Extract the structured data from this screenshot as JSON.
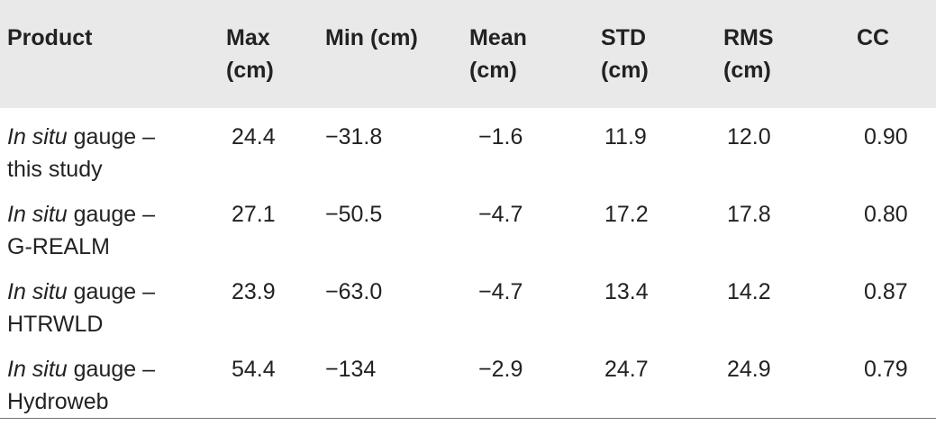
{
  "table": {
    "headers": [
      [
        "Product",
        ""
      ],
      [
        "Max",
        "(cm)"
      ],
      [
        "Min (cm)",
        ""
      ],
      [
        "Mean",
        "(cm)"
      ],
      [
        "STD",
        "(cm)"
      ],
      [
        "RMS",
        "(cm)"
      ],
      [
        "CC",
        ""
      ]
    ],
    "rows": [
      {
        "product_italic": "In situ",
        "product_rest": " gauge –",
        "product_line2": "this study",
        "max": "24.4",
        "min": "−31.8",
        "mean": "−1.6",
        "std": "11.9",
        "rms": "12.0",
        "cc": "0.90"
      },
      {
        "product_italic": "In situ",
        "product_rest": " gauge –",
        "product_line2": "G-REALM",
        "max": "27.1",
        "min": "−50.5",
        "mean": "−4.7",
        "std": "17.2",
        "rms": "17.8",
        "cc": "0.80"
      },
      {
        "product_italic": "In situ",
        "product_rest": " gauge –",
        "product_line2": "HTRWLD",
        "max": "23.9",
        "min": "−63.0",
        "mean": "−4.7",
        "std": "13.4",
        "rms": "14.2",
        "cc": "0.87"
      },
      {
        "product_italic": "In situ",
        "product_rest": " gauge –",
        "product_line2": "Hydroweb",
        "max": "54.4",
        "min": "−134",
        "mean": "−2.9",
        "std": "24.7",
        "rms": "24.9",
        "cc": "0.79"
      }
    ]
  }
}
